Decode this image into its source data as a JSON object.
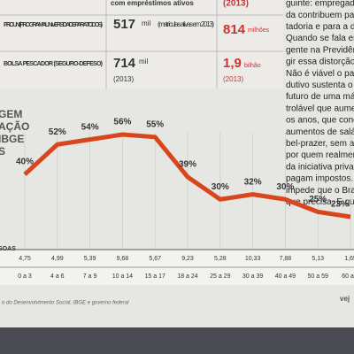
{
  "table": {
    "rows": [
      {
        "label": "com empréstimos ativos",
        "red": "(2013)"
      },
      {
        "label": "PROUNI (PROGRAMA UNIVERSIDADE PARA TODOS)",
        "big": "517",
        "unit": "mil",
        "note": "(matrículas ativas em 2013)",
        "red": "814",
        "red_unit": "milhões"
      },
      {
        "label": "BOLSA PESCADOR (SEGURO-DEFESO)",
        "big": "714",
        "unit": "mil",
        "note": "(2013)",
        "red": "1,9",
        "red_unit": "bilhão",
        "red_note": "(2013)"
      }
    ]
  },
  "article": [
    "guinte: empregados",
    "da contribuem para",
    "tadoria e para a dos",
    "Quando se fala em",
    "gente na Previdênc",
    "gir essa distorção,",
    "Não é viável o país",
    "dutivo sustenta o pa",
    "futuro de uma má",
    "trolável que aumen",
    "os anos, que conce",
    "aumentos de salári",
    "bel-prazer, sem a",
    "por quem realment",
    "da iniciativa privad",
    "pagam impostos. E",
    "impede que o Brasi",
    "que precisa. E que c"
  ],
  "chart_data": {
    "type": "line",
    "title_lines": [
      "GEM",
      "AÇÃO",
      "IBGE",
      "S"
    ],
    "categories": [
      "0 a 3",
      "4 a 6",
      "7 a 9",
      "10 a 14",
      "15 a 17",
      "18 a 24",
      "25 a 29",
      "30 a 39",
      "40 a 49",
      "50 a 59",
      "60 a 6"
    ],
    "values": [
      40,
      52,
      54,
      56,
      55,
      39,
      30,
      32,
      30,
      25,
      23
    ],
    "value_labels": [
      "40%",
      "52%",
      "54%",
      "56%",
      "55%",
      "39%",
      "30%",
      "32%",
      "30%",
      "25%",
      "23%"
    ],
    "color": "#d8461e",
    "row_label": "SOAS",
    "row_values": [
      "4,75",
      "4,99",
      "5,39",
      "9,68",
      "5,67",
      "9,23",
      "5,28",
      "10,33",
      "7,88",
      "5,13",
      "1,65"
    ],
    "source": "o do Desenvolvimento Social, IBGE e governo federal",
    "logo": "vej"
  }
}
